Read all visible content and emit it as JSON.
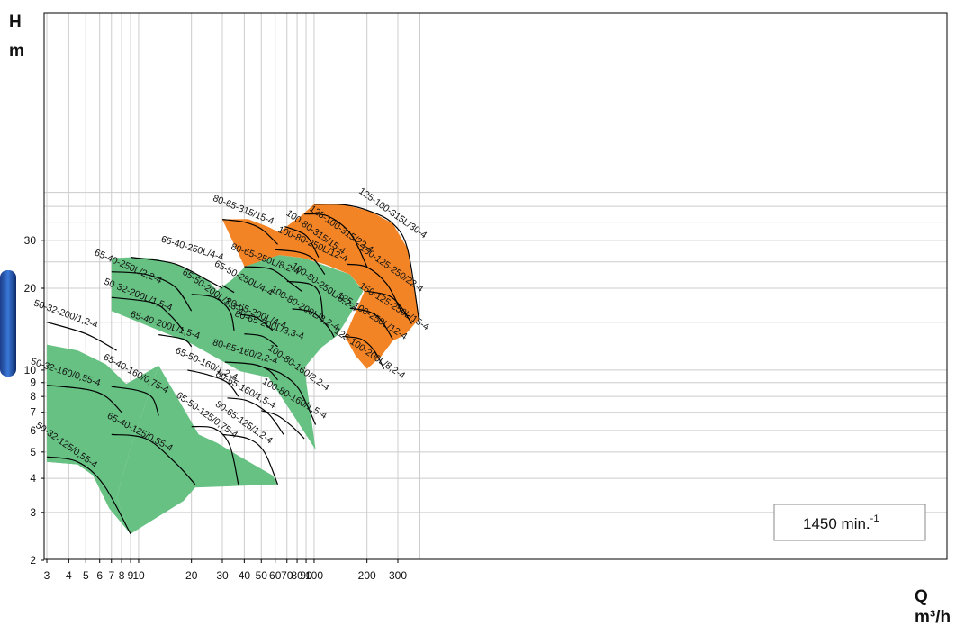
{
  "chart_data": {
    "type": "area",
    "title": "",
    "y_axis": {
      "symbol": "H",
      "unit": "m",
      "scale": "log",
      "range": [
        2,
        45
      ],
      "ticks": [
        2,
        3,
        4,
        5,
        6,
        7,
        8,
        9,
        10,
        20,
        30
      ],
      "tick_labels": [
        "2",
        "3",
        "4",
        "5",
        "6",
        "7",
        "8",
        "9",
        "10",
        "20",
        "30"
      ]
    },
    "x_axis": {
      "symbol": "Q",
      "unit": "m³/h",
      "scale": "log",
      "range": [
        3,
        400
      ],
      "ticks": [
        3,
        4,
        5,
        6,
        7,
        8,
        9,
        10,
        20,
        30,
        40,
        50,
        60,
        70,
        80,
        90,
        100,
        200,
        300
      ],
      "tick_labels": [
        "3",
        "4",
        "5",
        "6",
        "7",
        "8",
        "9",
        "10",
        "20",
        "30",
        "40",
        "50",
        "60",
        "70",
        "80",
        "90",
        "100",
        "200",
        "300"
      ]
    },
    "grid": true,
    "annotation": "1450 min.",
    "annotation_sup": "-1",
    "colors": {
      "green_zone": "#66c182",
      "orange_zone": "#f38426",
      "grid": "#cccccc",
      "curve": "#000000"
    },
    "regions": [
      {
        "zone": "green",
        "points": [
          [
            3,
            12.4
          ],
          [
            4.5,
            11.8
          ],
          [
            6.5,
            10.5
          ],
          [
            7.8,
            9.4
          ],
          [
            6.2,
            6.9
          ],
          [
            5.2,
            5.2
          ],
          [
            4.5,
            4.5
          ],
          [
            3,
            4.6
          ]
        ]
      },
      {
        "zone": "green",
        "points": [
          [
            7,
            25.8
          ],
          [
            9,
            26
          ],
          [
            12,
            25.8
          ],
          [
            16,
            24.6
          ],
          [
            20,
            23
          ],
          [
            25,
            21.3
          ],
          [
            28,
            19.6
          ],
          [
            34,
            21.5
          ],
          [
            46,
            26
          ],
          [
            63,
            26.5
          ],
          [
            88,
            25.8
          ],
          [
            110,
            24.5
          ],
          [
            160,
            22.5
          ],
          [
            190,
            19.5
          ],
          [
            160,
            16
          ],
          [
            135,
            13.4
          ],
          [
            110,
            12.1
          ],
          [
            88,
            10.2
          ],
          [
            102,
            5.1
          ],
          [
            80,
            6.5
          ],
          [
            55,
            9.4
          ],
          [
            38,
            9.9
          ],
          [
            20,
            12.5
          ],
          [
            7,
            16.5
          ]
        ]
      },
      {
        "zone": "green",
        "points": [
          [
            13,
            10.4
          ],
          [
            22,
            5.8
          ],
          [
            28,
            5.4
          ],
          [
            38,
            4.8
          ],
          [
            58,
            4.1
          ],
          [
            62,
            3.8
          ],
          [
            21,
            3.7
          ],
          [
            18,
            3.3
          ],
          [
            13,
            2.9
          ],
          [
            9,
            2.5
          ],
          [
            7.5,
            3.4
          ],
          [
            9,
            5.2
          ]
        ]
      },
      {
        "zone": "green",
        "points": [
          [
            3,
            12.4
          ],
          [
            4.5,
            11.8
          ],
          [
            6.5,
            10.5
          ],
          [
            8.5,
            8.9
          ],
          [
            13,
            10.4
          ],
          [
            9,
            5.2
          ],
          [
            7.5,
            3.4
          ],
          [
            9,
            2.5
          ],
          [
            6.8,
            3.1
          ],
          [
            5.5,
            4.1
          ],
          [
            4.5,
            4.5
          ],
          [
            3,
            4.6
          ]
        ]
      },
      {
        "zone": "orange",
        "points": [
          [
            30,
            35.8
          ],
          [
            42,
            35.9
          ],
          [
            55,
            33.6
          ],
          [
            63,
            32.1
          ],
          [
            73,
            34.5
          ],
          [
            83,
            36.6
          ],
          [
            100,
            40.7
          ],
          [
            150,
            40.5
          ],
          [
            210,
            38.3
          ],
          [
            280,
            34.6
          ],
          [
            340,
            28
          ],
          [
            395,
            15.4
          ],
          [
            330,
            13.5
          ],
          [
            280,
            12.8
          ],
          [
            240,
            11.2
          ],
          [
            200,
            10.1
          ],
          [
            172,
            11.3
          ],
          [
            150,
            13.3
          ],
          [
            193,
            19.4
          ],
          [
            160,
            22.5
          ],
          [
            115,
            24.5
          ],
          [
            85,
            25.9
          ],
          [
            63,
            26.5
          ],
          [
            40,
            24
          ],
          [
            40,
            24.1
          ]
        ]
      }
    ],
    "series": [
      {
        "name": "50-32-200/1,2-4",
        "label_at": [
          3.8,
          15.7
        ],
        "curve": [
          [
            3,
            15
          ],
          [
            5,
            13.6
          ],
          [
            7.5,
            11.8
          ]
        ]
      },
      {
        "name": "50-32-160/0,55-4",
        "label_at": [
          3.8,
          9.6
        ],
        "curve": [
          [
            3,
            8.8
          ],
          [
            5,
            8.5
          ],
          [
            6.5,
            8
          ],
          [
            8,
            7
          ]
        ]
      },
      {
        "name": "50-32-125/0,55-4",
        "label_at": [
          3.8,
          5.2
        ],
        "curve": [
          [
            3,
            4.8
          ],
          [
            4.5,
            4.6
          ],
          [
            6.3,
            3.8
          ],
          [
            9,
            2.5
          ]
        ]
      },
      {
        "name": "65-40-250L/4-4",
        "label_at": [
          20,
          27.4
        ],
        "curve": [
          [
            9,
            26
          ],
          [
            16,
            24.6
          ],
          [
            25,
            21.3
          ],
          [
            30,
            20
          ]
        ]
      },
      {
        "name": "65-40-250L/2,2-4",
        "label_at": [
          8.6,
          23.5
        ],
        "curve": [
          [
            7,
            23
          ],
          [
            11,
            22.5
          ],
          [
            16,
            20.3
          ],
          [
            20,
            16.5
          ]
        ]
      },
      {
        "name": "50-32-200L/1,5-4",
        "label_at": [
          9.8,
          18.5
        ],
        "curve": [
          [
            7,
            18.5
          ],
          [
            12,
            17.7
          ],
          [
            15,
            16
          ],
          [
            18,
            14
          ]
        ]
      },
      {
        "name": "65-40-200L/1,5-4",
        "label_at": [
          14,
          14.3
        ],
        "curve": [
          [
            13,
            13.5
          ],
          [
            18,
            13
          ],
          [
            20,
            12.2
          ]
        ]
      },
      {
        "name": "65-40-160/0,75-4",
        "label_at": [
          9.5,
          9.5
        ],
        "curve": [
          [
            7,
            8.7
          ],
          [
            10,
            8.4
          ],
          [
            12,
            7.9
          ],
          [
            13,
            6.8
          ]
        ]
      },
      {
        "name": "65-40-125/0,55-4",
        "label_at": [
          10,
          5.8
        ],
        "curve": [
          [
            7,
            5.8
          ],
          [
            11,
            5.6
          ],
          [
            16,
            4.6
          ],
          [
            21,
            3.8
          ]
        ]
      },
      {
        "name": "65-50-200L/3,3-4",
        "label_at": [
          26,
          19
        ],
        "curve": [
          [
            20,
            19
          ],
          [
            27,
            18.5
          ],
          [
            33,
            16.5
          ],
          [
            35,
            14
          ]
        ]
      },
      {
        "name": "65-50-250L/4-4",
        "label_at": [
          39,
          21.3
        ],
        "curve": [
          [
            30,
            20.5
          ],
          [
            35,
            19.3
          ]
        ]
      },
      {
        "name": "65-50-160/1,2-4",
        "label_at": [
          24,
          10.3
        ],
        "curve": [
          [
            19,
            10
          ],
          [
            25,
            9.6
          ],
          [
            32,
            9
          ],
          [
            37,
            8
          ]
        ]
      },
      {
        "name": "65-50-125/0,75-4",
        "label_at": [
          24,
          6.7
        ],
        "curve": [
          [
            20,
            6.2
          ],
          [
            27,
            6.1
          ],
          [
            33,
            5.3
          ],
          [
            37,
            3.8
          ]
        ]
      },
      {
        "name": "80-65-315/15-4",
        "label_at": [
          39,
          38
        ],
        "curve": [
          [
            30,
            35.8
          ],
          [
            40,
            35
          ],
          [
            50,
            33
          ],
          [
            62,
            29
          ]
        ]
      },
      {
        "name": "80-65-250L/8,2-4",
        "label_at": [
          52,
          25
        ],
        "curve": [
          [
            40,
            24
          ],
          [
            57,
            23.5
          ],
          [
            73,
            21
          ],
          [
            85,
            19.5
          ]
        ]
      },
      {
        "name": "80-65-200L/4-4",
        "label_at": [
          46,
          15.8
        ],
        "curve": [
          [
            38,
            16
          ],
          [
            47,
            15.6
          ],
          [
            58,
            14
          ]
        ]
      },
      {
        "name": "80-65-200L/3,3-4",
        "label_at": [
          55,
          14.3
        ],
        "curve": [
          [
            40,
            13.6
          ],
          [
            51,
            13.3
          ],
          [
            62,
            12.2
          ]
        ]
      },
      {
        "name": "80-65-160/2,2-4",
        "label_at": [
          40,
          11.4
        ],
        "curve": [
          [
            31,
            10.7
          ],
          [
            45,
            10.5
          ],
          [
            55,
            10
          ],
          [
            62,
            9.2
          ]
        ]
      },
      {
        "name": "80-65-160/1,5-4",
        "label_at": [
          40,
          8.3
        ],
        "curve": [
          [
            32,
            7.9
          ],
          [
            42,
            7.7
          ],
          [
            55,
            6.9
          ],
          [
            67,
            5.8
          ]
        ]
      },
      {
        "name": "80-65-125/1,2-4",
        "label_at": [
          39,
          6.3
        ],
        "curve": [
          [
            30,
            5.8
          ],
          [
            42,
            5.6
          ],
          [
            52,
            5
          ],
          [
            62,
            3.8
          ]
        ]
      },
      {
        "name": "100-80-315/15-4",
        "label_at": [
          100,
          31.5
        ],
        "curve": [
          [
            68,
            33.7
          ],
          [
            82,
            32.3
          ],
          [
            93,
            30.5
          ],
          [
            106,
            26
          ]
        ]
      },
      {
        "name": "100-80-250L/12-4",
        "label_at": [
          97,
          28.4
        ],
        "curve": [
          [
            60,
            27.7
          ],
          [
            80,
            27.2
          ],
          [
            98,
            25.8
          ],
          [
            115,
            22.5
          ]
        ]
      },
      {
        "name": "100-80-250L/8,2-4",
        "label_at": [
          112,
          19.8
        ],
        "curve": [
          [
            70,
            21.2
          ],
          [
            95,
            20.7
          ],
          [
            108,
            18.9
          ],
          [
            112,
            15.6
          ]
        ]
      },
      {
        "name": "100-80-200L/8,2-4",
        "label_at": [
          87,
          16.5
        ],
        "curve": [
          [
            75,
            16.8
          ],
          [
            98,
            16.3
          ],
          [
            120,
            14.4
          ],
          [
            130,
            13.2
          ]
        ]
      },
      {
        "name": "100-80-160/2,2-4",
        "label_at": [
          80,
          10
        ],
        "curve": [
          [
            52,
            10.2
          ],
          [
            65,
            9.7
          ],
          [
            82,
            8.5
          ],
          [
            102,
            6.3
          ]
        ]
      },
      {
        "name": "100-80-160/1,5-4",
        "label_at": [
          76,
          7.7
        ],
        "curve": [
          [
            50,
            7.1
          ],
          [
            62,
            6.8
          ],
          [
            75,
            6.2
          ],
          [
            88,
            5.6
          ]
        ]
      },
      {
        "name": "125-100-315/22-4",
        "label_at": [
          140,
          32.3
        ],
        "curve": [
          [
            88,
            37.5
          ],
          [
            120,
            36.8
          ],
          [
            162,
            31.6
          ],
          [
            200,
            24
          ]
        ]
      },
      {
        "name": "125-100-315L/30-4",
        "label_at": [
          275,
          37
        ],
        "curve": [
          [
            100,
            40.7
          ],
          [
            150,
            40.5
          ],
          [
            210,
            38.3
          ],
          [
            280,
            34.6
          ],
          [
            340,
            28
          ],
          [
            395,
            15.4
          ]
        ]
      },
      {
        "name": "150-125-250/22-4",
        "label_at": [
          270,
          23.2
        ],
        "curve": [
          [
            155,
            24.5
          ],
          [
            200,
            23.9
          ],
          [
            260,
            20.7
          ],
          [
            315,
            16.5
          ],
          [
            350,
            15.8
          ]
        ]
      },
      {
        "name": "125-100-250L/12-4",
        "label_at": [
          210,
          15.5
        ],
        "curve": [
          [
            160,
            16.9
          ],
          [
            205,
            16.4
          ],
          [
            240,
            15.3
          ],
          [
            280,
            13
          ]
        ]
      },
      {
        "name": "150-125-250L/15-4",
        "label_at": [
          280,
          16.8
        ],
        "curve": [
          [
            200,
            19.5
          ],
          [
            265,
            18.8
          ],
          [
            310,
            17.2
          ],
          [
            360,
            14.8
          ]
        ]
      },
      {
        "name": "125-100-200L/8,2-4",
        "label_at": [
          203,
          11.3
        ],
        "curve": [
          [
            145,
            13.3
          ],
          [
            185,
            13
          ],
          [
            220,
            11.8
          ],
          [
            250,
            10.1
          ]
        ]
      }
    ]
  }
}
